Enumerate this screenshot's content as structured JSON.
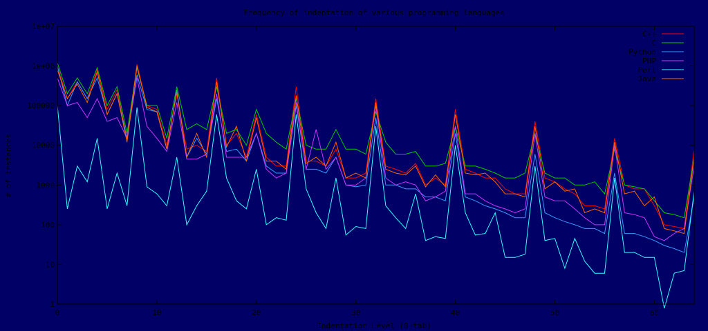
{
  "chart_data": {
    "type": "line",
    "title": "Frequency of indentation of various programming languages",
    "xlabel": "Indentation Level (8=tab)",
    "ylabel": "# of instances",
    "xlim": [
      0,
      64
    ],
    "ylim": [
      1,
      10000000
    ],
    "yscale": "log",
    "x_ticks": [
      0,
      10,
      20,
      30,
      40,
      50,
      60
    ],
    "y_ticks": [
      {
        "value": 1,
        "label": "1"
      },
      {
        "value": 10,
        "label": "10"
      },
      {
        "value": 100,
        "label": "100"
      },
      {
        "value": 1000,
        "label": "1000"
      },
      {
        "value": 10000,
        "label": "10000"
      },
      {
        "value": 100000,
        "label": "100000"
      },
      {
        "value": 1000000,
        "label": "1e+06"
      },
      {
        "value": 10000000,
        "label": "1e+07"
      }
    ],
    "legend_position": "top-right",
    "background": "#000066",
    "series": [
      {
        "name": "C++",
        "color": "#ff0000",
        "values": [
          1000000,
          150000,
          400000,
          150000,
          800000,
          80000,
          250000,
          15000,
          1100000,
          100000,
          80000,
          10000,
          200000,
          8000,
          10000,
          7000,
          500000,
          10000,
          20000,
          5000,
          60000,
          5000,
          3000,
          3000,
          300000,
          4000,
          4000,
          3000,
          8000,
          1500,
          1500,
          2000,
          150000,
          3000,
          2500,
          2000,
          3500,
          1000,
          1500,
          1000,
          80000,
          2500,
          2000,
          1500,
          1500,
          800,
          600,
          600,
          40000,
          1500,
          1200,
          800,
          600,
          300,
          300,
          250,
          15000,
          1000,
          800,
          800,
          300,
          100,
          90,
          80,
          8000
        ]
      },
      {
        "name": "C",
        "color": "#00cc00",
        "values": [
          1200000,
          200000,
          500000,
          200000,
          900000,
          100000,
          300000,
          20000,
          900000,
          100000,
          100000,
          15000,
          300000,
          25000,
          35000,
          25000,
          300000,
          20000,
          25000,
          10000,
          80000,
          20000,
          12000,
          8000,
          150000,
          10000,
          8000,
          8000,
          25000,
          8000,
          8000,
          6000,
          70000,
          12000,
          6000,
          6000,
          7000,
          3000,
          3000,
          3500,
          30000,
          3000,
          3000,
          2500,
          2000,
          1500,
          1500,
          2000,
          20000,
          2000,
          1500,
          1500,
          1000,
          1000,
          1200,
          600,
          8000,
          1000,
          900,
          800,
          400,
          200,
          180,
          150,
          5000
        ]
      },
      {
        "name": "Python",
        "color": "#3399ff",
        "values": [
          1000000,
          100000,
          400000,
          150000,
          500000,
          60000,
          200000,
          15000,
          600000,
          80000,
          70000,
          8000,
          250000,
          5000,
          15000,
          6000,
          150000,
          7000,
          8000,
          4000,
          20000,
          3000,
          2000,
          2000,
          100000,
          2500,
          2500,
          2000,
          5000,
          1000,
          900,
          1000,
          50000,
          1000,
          1000,
          800,
          800,
          500,
          500,
          400,
          20000,
          500,
          400,
          300,
          250,
          200,
          150,
          150,
          6000,
          200,
          150,
          120,
          100,
          80,
          80,
          60,
          2000,
          60,
          60,
          50,
          40,
          30,
          25,
          20,
          500
        ]
      },
      {
        "name": "PHP",
        "color": "#cc33ff",
        "values": [
          500000,
          100000,
          120000,
          50000,
          150000,
          40000,
          50000,
          15000,
          500000,
          30000,
          15000,
          7000,
          120000,
          4500,
          4500,
          6000,
          200000,
          5000,
          5000,
          5000,
          20000,
          2500,
          1500,
          2000,
          120000,
          2500,
          25000,
          2500,
          5000,
          1000,
          1000,
          1500,
          100000,
          1500,
          1000,
          1200,
          1000,
          400,
          500,
          700,
          30000,
          600,
          600,
          400,
          300,
          250,
          200,
          250,
          20000,
          500,
          400,
          400,
          250,
          150,
          100,
          100,
          10000,
          200,
          180,
          150,
          50,
          40,
          60,
          80,
          3000
        ]
      },
      {
        "name": "Perl",
        "color": "#33ffff",
        "values": [
          100000,
          250,
          3000,
          1200,
          15000,
          250,
          2000,
          300,
          90000,
          900,
          600,
          300,
          5000,
          100,
          300,
          700,
          60000,
          1500,
          400,
          250,
          2500,
          100,
          150,
          130,
          60000,
          800,
          200,
          80,
          1500,
          55,
          90,
          80,
          30000,
          300,
          150,
          80,
          600,
          40,
          50,
          45,
          10000,
          200,
          55,
          60,
          200,
          15,
          15,
          18,
          3000,
          40,
          45,
          8,
          45,
          12,
          6,
          6,
          1500,
          20,
          20,
          15,
          15,
          0.5,
          6,
          7,
          700
        ]
      },
      {
        "name": "Java",
        "color": "#ff6600",
        "values": [
          800000,
          150000,
          350000,
          120000,
          700000,
          60000,
          200000,
          12000,
          1000000,
          90000,
          70000,
          8000,
          220000,
          5000,
          20000,
          5000,
          400000,
          9000,
          30000,
          4000,
          50000,
          4000,
          4000,
          2500,
          180000,
          3500,
          5000,
          3000,
          12000,
          1500,
          2000,
          1500,
          120000,
          2500,
          2000,
          1800,
          3000,
          900,
          1800,
          900,
          60000,
          2000,
          1800,
          2000,
          1200,
          600,
          600,
          500,
          30000,
          800,
          1200,
          700,
          800,
          200,
          250,
          200,
          12000,
          600,
          700,
          300,
          500,
          80,
          70,
          60,
          5000
        ]
      }
    ]
  }
}
